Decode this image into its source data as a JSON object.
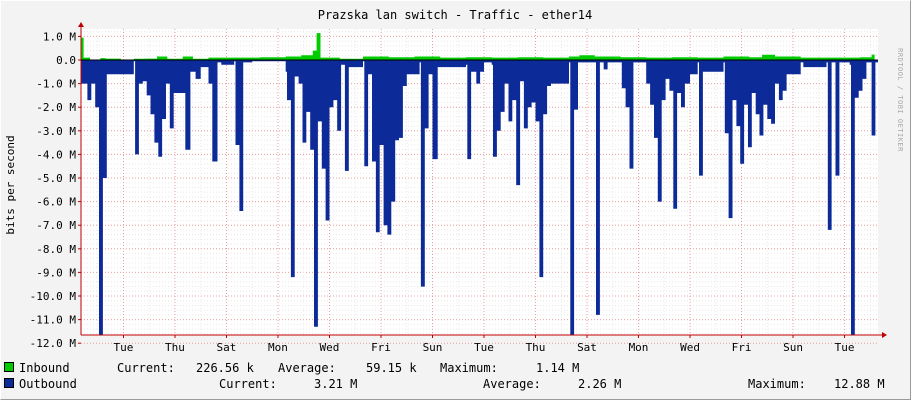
{
  "chart_data": {
    "type": "area",
    "title": "Prazska lan switch - Traffic - ether14",
    "ylabel": "bits per second",
    "watermark": "RRDTOOL / TOBI OETIKER",
    "ylim": [
      -13000000,
      1300000
    ],
    "y_ticks": [
      1000000,
      0,
      -1000000,
      -2000000,
      -3000000,
      -4000000,
      -5000000,
      -6000000,
      -7000000,
      -8000000,
      -9000000,
      -10000000,
      -11000000,
      -12000000
    ],
    "y_tick_labels": [
      "1.0 M",
      "0.0",
      "-1.0 M",
      "-2.0 M",
      "-3.0 M",
      "-4.0 M",
      "-5.0 M",
      "-6.0 M",
      "-7.0 M",
      "-8.0 M",
      "-9.0 M",
      "-10.0 M",
      "-11.0 M",
      "-12.0 M"
    ],
    "x_labels": [
      "Tue",
      "Thu",
      "Sat",
      "Mon",
      "Wed",
      "Fri",
      "Sun",
      "Tue",
      "Thu",
      "Sat",
      "Mon",
      "Wed",
      "Fri",
      "Sun",
      "Tue"
    ],
    "x_label_days": [
      1,
      3,
      5,
      7,
      9,
      11,
      13,
      15,
      17,
      19,
      21,
      23,
      25,
      27,
      29
    ],
    "x_range_days": [
      -0.65,
      30.3
    ],
    "series": [
      {
        "name": "Inbound",
        "color": "#00cc00",
        "points": [
          [
            -0.64,
            0.95
          ],
          [
            -0.55,
            0.1
          ],
          [
            -0.3,
            0.0
          ],
          [
            0.1,
            0.08
          ],
          [
            0.3,
            0.06
          ],
          [
            0.9,
            0.02
          ],
          [
            1.4,
            0.05
          ],
          [
            1.8,
            0.06
          ],
          [
            2.3,
            0.15
          ],
          [
            2.7,
            0.05
          ],
          [
            3.3,
            0.15
          ],
          [
            3.7,
            0.05
          ],
          [
            4.3,
            0.1
          ],
          [
            5.3,
            0.1
          ],
          [
            6.3,
            0.12
          ],
          [
            7.3,
            0.15
          ],
          [
            7.9,
            0.2
          ],
          [
            8.35,
            0.4
          ],
          [
            8.5,
            1.14
          ],
          [
            8.65,
            0.1
          ],
          [
            9.4,
            0.05
          ],
          [
            10.3,
            0.15
          ],
          [
            11.3,
            0.12
          ],
          [
            12.3,
            0.15
          ],
          [
            13.3,
            0.1
          ],
          [
            14.3,
            0.12
          ],
          [
            15.3,
            0.1
          ],
          [
            16.3,
            0.12
          ],
          [
            17.3,
            0.1
          ],
          [
            18.3,
            0.15
          ],
          [
            18.7,
            0.2
          ],
          [
            19.3,
            0.15
          ],
          [
            20.3,
            0.12
          ],
          [
            21.3,
            0.1
          ],
          [
            22.3,
            0.12
          ],
          [
            23.3,
            0.1
          ],
          [
            24.3,
            0.15
          ],
          [
            25.3,
            0.12
          ],
          [
            25.8,
            0.22
          ],
          [
            26.3,
            0.15
          ],
          [
            27.3,
            0.1
          ],
          [
            28.3,
            0.1
          ],
          [
            29.6,
            0.12
          ],
          [
            30.05,
            0.23
          ]
        ]
      },
      {
        "name": "Outbound",
        "color": "#0d2a99",
        "points": [
          [
            -0.64,
            1.0
          ],
          [
            -0.4,
            1.7
          ],
          [
            -0.25,
            1.0
          ],
          [
            -0.1,
            2.0
          ],
          [
            0.05,
            12.0
          ],
          [
            0.2,
            5.0
          ],
          [
            0.35,
            0.6
          ],
          [
            1.4,
            0.05
          ],
          [
            1.45,
            4.0
          ],
          [
            1.6,
            1.0
          ],
          [
            1.75,
            0.9
          ],
          [
            1.9,
            1.5
          ],
          [
            2.05,
            2.3
          ],
          [
            2.2,
            3.5
          ],
          [
            2.35,
            4.1
          ],
          [
            2.5,
            2.5
          ],
          [
            2.65,
            1.0
          ],
          [
            2.8,
            2.9
          ],
          [
            2.95,
            1.4
          ],
          [
            3.4,
            3.8
          ],
          [
            3.6,
            0.5
          ],
          [
            3.8,
            0.8
          ],
          [
            4.0,
            0.3
          ],
          [
            4.3,
            1.0
          ],
          [
            4.45,
            4.3
          ],
          [
            4.65,
            0.1
          ],
          [
            4.8,
            0.2
          ],
          [
            5.3,
            0.05
          ],
          [
            5.35,
            3.6
          ],
          [
            5.5,
            6.4
          ],
          [
            5.65,
            0.1
          ],
          [
            6.0,
            0.05
          ],
          [
            7.3,
            0.5
          ],
          [
            7.35,
            1.7
          ],
          [
            7.5,
            9.2
          ],
          [
            7.65,
            0.7
          ],
          [
            7.8,
            1.0
          ],
          [
            7.95,
            3.5
          ],
          [
            8.1,
            2.2
          ],
          [
            8.25,
            3.8
          ],
          [
            8.4,
            11.3
          ],
          [
            8.55,
            2.6
          ],
          [
            8.7,
            4.6
          ],
          [
            8.85,
            6.8
          ],
          [
            9.0,
            2.0
          ],
          [
            9.15,
            1.7
          ],
          [
            9.3,
            3.0
          ],
          [
            9.45,
            0.2
          ],
          [
            9.6,
            4.7
          ],
          [
            9.75,
            0.3
          ],
          [
            10.3,
            0.05
          ],
          [
            10.35,
            4.5
          ],
          [
            10.5,
            0.6
          ],
          [
            10.65,
            4.3
          ],
          [
            10.8,
            7.3
          ],
          [
            10.95,
            3.6
          ],
          [
            11.1,
            7.0
          ],
          [
            11.25,
            7.4
          ],
          [
            11.4,
            6.0
          ],
          [
            11.55,
            3.4
          ],
          [
            11.7,
            3.3
          ],
          [
            11.85,
            1.1
          ],
          [
            12.0,
            0.6
          ],
          [
            12.5,
            0.1
          ],
          [
            12.55,
            9.6
          ],
          [
            12.7,
            2.9
          ],
          [
            12.85,
            0.6
          ],
          [
            13.0,
            4.2
          ],
          [
            13.2,
            0.3
          ],
          [
            14.3,
            0.2
          ],
          [
            14.35,
            4.2
          ],
          [
            14.5,
            0.5
          ],
          [
            14.7,
            1.0
          ],
          [
            14.85,
            0.5
          ],
          [
            15.0,
            0.1
          ],
          [
            15.3,
            0.2
          ],
          [
            15.35,
            4.1
          ],
          [
            15.5,
            3.0
          ],
          [
            15.65,
            2.2
          ],
          [
            15.8,
            1.0
          ],
          [
            15.95,
            2.6
          ],
          [
            16.1,
            1.7
          ],
          [
            16.25,
            5.3
          ],
          [
            16.4,
            0.9
          ],
          [
            16.55,
            2.9
          ],
          [
            16.7,
            2.0
          ],
          [
            16.85,
            1.8
          ],
          [
            17.0,
            2.6
          ],
          [
            17.15,
            9.2
          ],
          [
            17.3,
            2.3
          ],
          [
            17.45,
            1.1
          ],
          [
            17.6,
            1.0
          ],
          [
            18.3,
            0.1
          ],
          [
            18.35,
            11.7
          ],
          [
            18.5,
            2.1
          ],
          [
            18.65,
            0.1
          ],
          [
            19.3,
            0.1
          ],
          [
            19.35,
            10.8
          ],
          [
            19.5,
            0.1
          ],
          [
            19.65,
            0.4
          ],
          [
            19.8,
            0.1
          ],
          [
            20.3,
            0.1
          ],
          [
            20.35,
            1.2
          ],
          [
            20.5,
            2.0
          ],
          [
            20.65,
            4.6
          ],
          [
            20.8,
            0.1
          ],
          [
            21.3,
            1.0
          ],
          [
            21.45,
            1.9
          ],
          [
            21.6,
            3.3
          ],
          [
            21.75,
            6.0
          ],
          [
            21.9,
            1.7
          ],
          [
            22.05,
            0.8
          ],
          [
            22.2,
            1.3
          ],
          [
            22.35,
            6.3
          ],
          [
            22.5,
            1.4
          ],
          [
            22.65,
            2.0
          ],
          [
            22.8,
            1.0
          ],
          [
            23.0,
            0.6
          ],
          [
            23.3,
            0.1
          ],
          [
            23.35,
            4.9
          ],
          [
            23.5,
            0.5
          ],
          [
            24.3,
            0.1
          ],
          [
            24.35,
            3.1
          ],
          [
            24.5,
            6.7
          ],
          [
            24.65,
            1.7
          ],
          [
            24.8,
            2.8
          ],
          [
            24.95,
            4.4
          ],
          [
            25.1,
            1.9
          ],
          [
            25.25,
            3.7
          ],
          [
            25.4,
            1.4
          ],
          [
            25.55,
            2.3
          ],
          [
            25.7,
            3.2
          ],
          [
            25.85,
            1.9
          ],
          [
            26.0,
            2.5
          ],
          [
            26.15,
            2.7
          ],
          [
            26.3,
            1.0
          ],
          [
            26.45,
            1.7
          ],
          [
            26.6,
            1.3
          ],
          [
            26.75,
            0.6
          ],
          [
            27.3,
            0.1
          ],
          [
            27.4,
            0.3
          ],
          [
            28.3,
            0.1
          ],
          [
            28.35,
            7.2
          ],
          [
            28.5,
            0.1
          ],
          [
            28.65,
            4.9
          ],
          [
            28.8,
            0.1
          ],
          [
            29.2,
            0.2
          ],
          [
            29.25,
            12.9
          ],
          [
            29.4,
            1.6
          ],
          [
            29.55,
            1.3
          ],
          [
            29.7,
            0.8
          ],
          [
            29.85,
            0.1
          ],
          [
            30.05,
            3.2
          ],
          [
            30.2,
            0.1
          ]
        ]
      }
    ],
    "legend": {
      "inbound": {
        "label": "Inbound",
        "current": "226.56 k",
        "average": "59.15 k",
        "maximum": "1.14 M"
      },
      "outbound": {
        "label": "Outbound",
        "current": "3.21 M",
        "average": "2.26 M",
        "maximum": "12.88 M"
      },
      "current_label": "Current:",
      "average_label": "Average:",
      "maximum_label": "Maximum:"
    }
  }
}
